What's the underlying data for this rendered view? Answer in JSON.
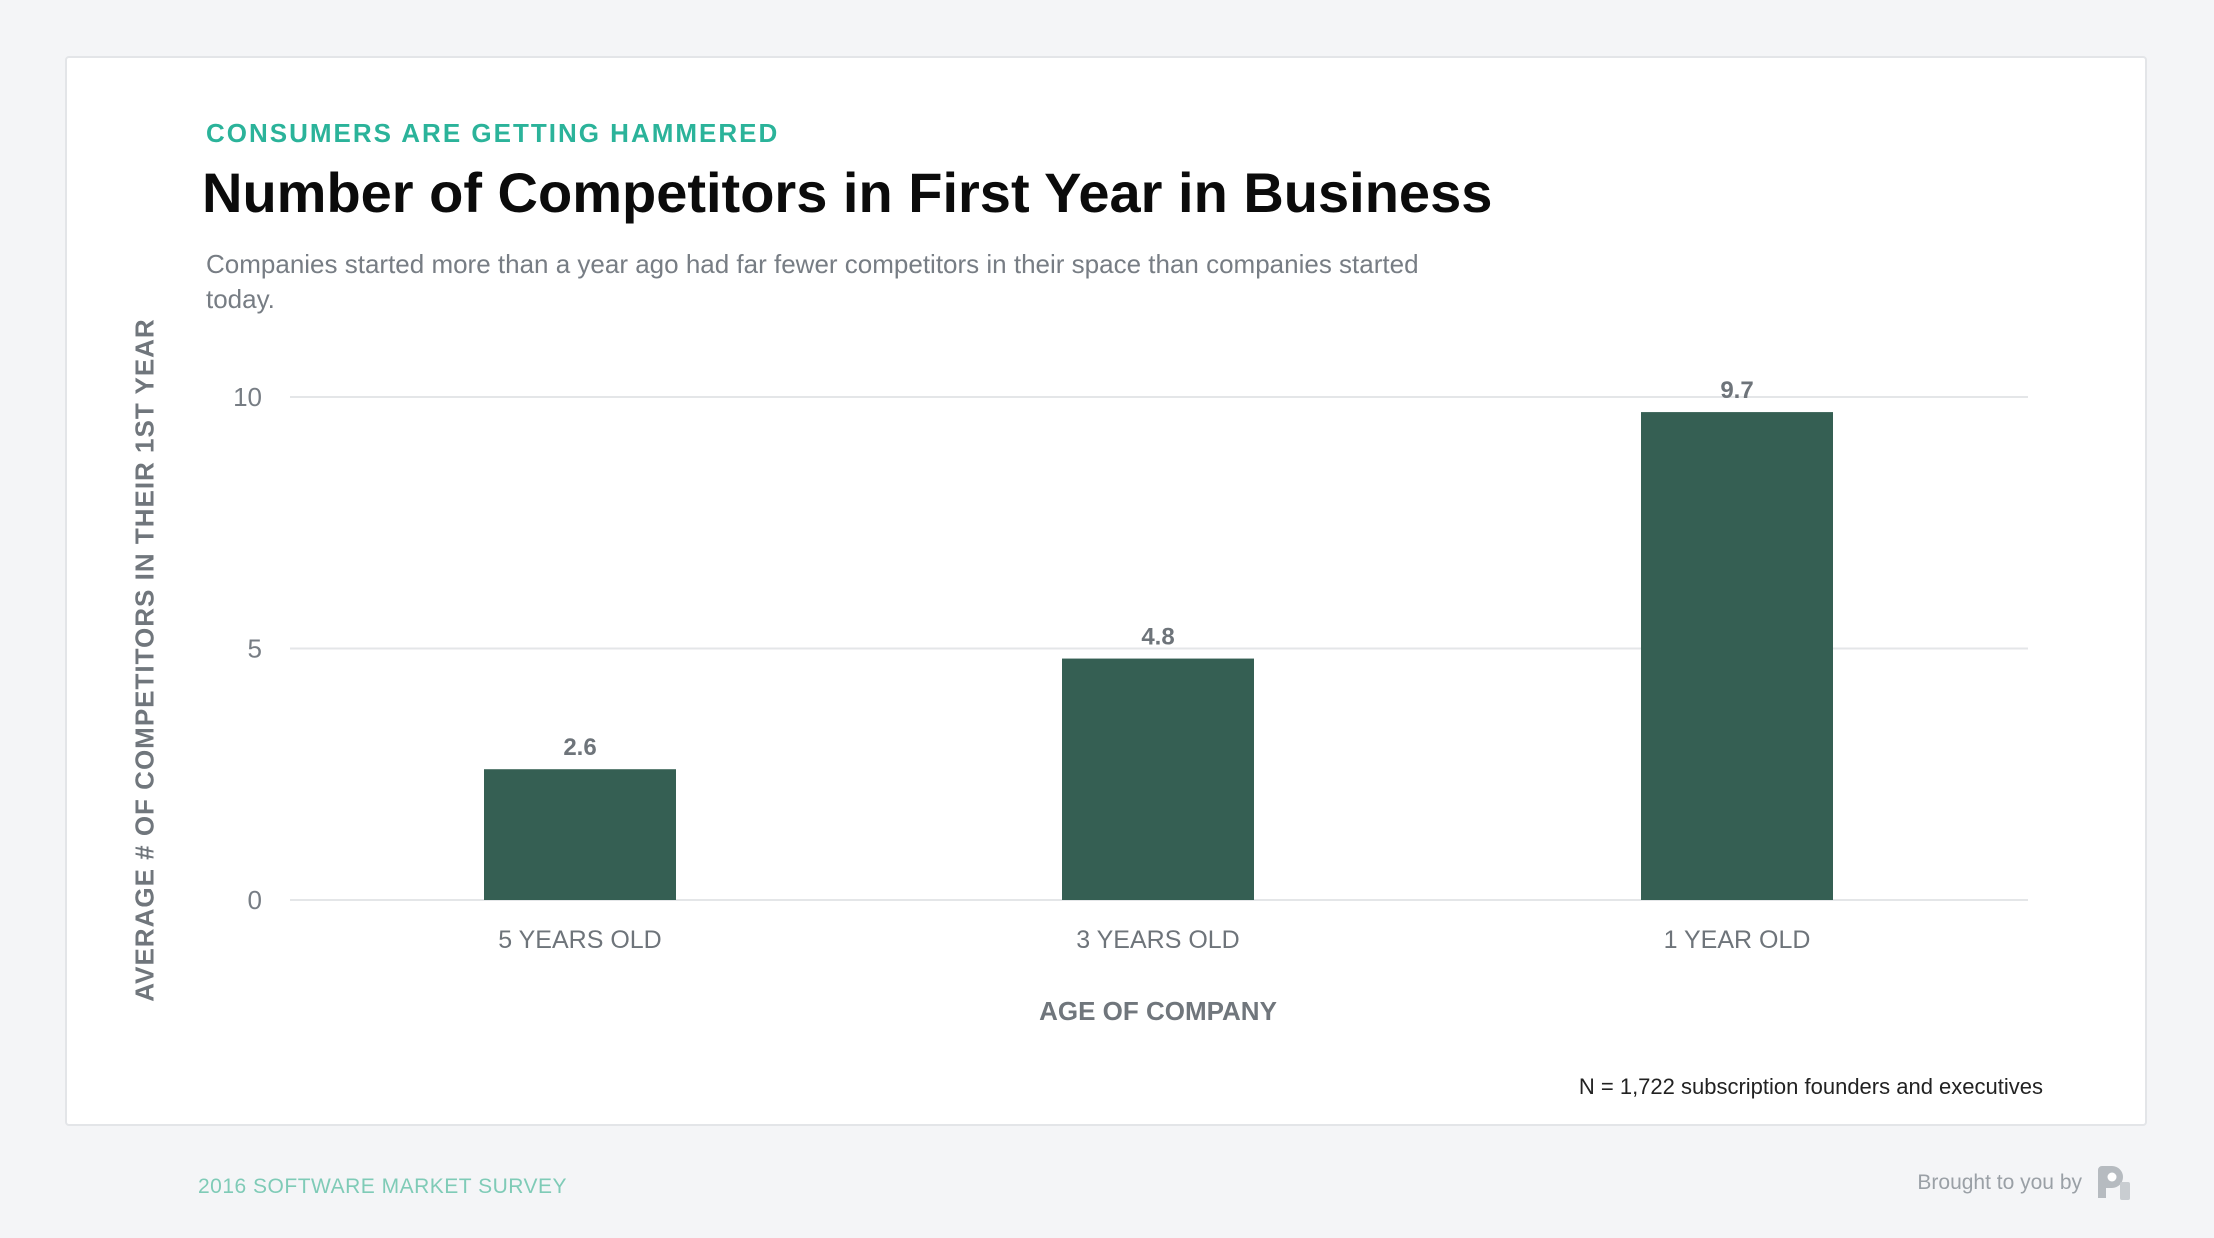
{
  "header": {
    "eyebrow": "CONSUMERS ARE GETTING HAMMERED",
    "title": "Number of Competitors in First Year in Business",
    "subtitle": "Companies started more than a year ago had far fewer competitors in their space than companies started today."
  },
  "chart_data": {
    "type": "bar",
    "categories": [
      "5 YEARS OLD",
      "3 YEARS OLD",
      "1 YEAR OLD"
    ],
    "values": [
      2.6,
      4.8,
      9.7
    ],
    "data_labels": [
      "2.6",
      "4.8",
      "9.7"
    ],
    "xlabel": "AGE OF COMPANY",
    "ylabel": "AVERAGE # OF COMPETITORS IN THEIR 1ST YEAR",
    "ylim": [
      0,
      10
    ],
    "yticks": [
      0,
      5,
      10
    ],
    "grid": true,
    "bar_color": "#355f53"
  },
  "note": "N = 1,722 subscription founders and executives",
  "footer": {
    "left": "2016 SOFTWARE MARKET SURVEY",
    "right": "Brought to you by",
    "brand_icon": "brand-logo-icon"
  }
}
